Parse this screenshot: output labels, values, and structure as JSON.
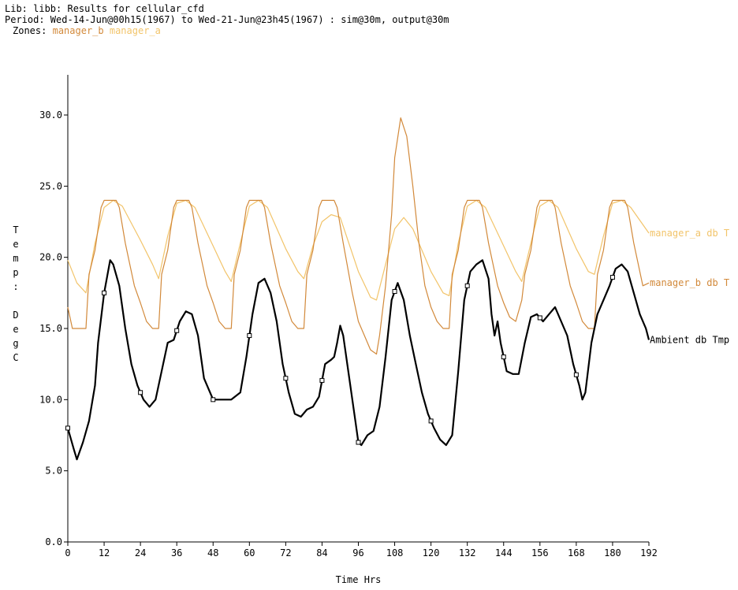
{
  "header": {
    "lib_line": "Lib: libb: Results for cellular_cfd",
    "period_line": "Period: Wed-14-Jun@00h15(1967) to Wed-21-Jun@23h45(1967) : sim@30m, output@30m",
    "zones_label": "Zones:",
    "zones": [
      "manager_b",
      "manager_a"
    ]
  },
  "colors": {
    "manager_b": "#d2893a",
    "manager_a": "#f2c46a",
    "ambient": "#000000"
  },
  "chart_data": {
    "type": "line",
    "xlabel": "Time Hrs",
    "ylabel": "Temp: DegC",
    "xlim": [
      0,
      192
    ],
    "ylim": [
      0,
      32
    ],
    "xticks": [
      "0",
      "12",
      "24",
      "36",
      "48",
      "60",
      "72",
      "84",
      "96",
      "108",
      "120",
      "132",
      "144",
      "156",
      "168",
      "180",
      "192"
    ],
    "yticks": [
      "0.0",
      "5.0",
      "10.0",
      "15.0",
      "20.0",
      "25.0",
      "30.0"
    ],
    "grid": false,
    "series": [
      {
        "name": "manager_a db T",
        "color": "#f2c46a",
        "x": [
          0,
          3,
          6,
          9,
          12,
          15,
          18,
          24,
          28,
          30,
          33,
          36,
          39,
          42,
          48,
          52,
          54,
          57,
          60,
          63,
          66,
          72,
          76,
          78,
          81,
          84,
          87,
          90,
          96,
          100,
          102,
          105,
          108,
          111,
          114,
          120,
          124,
          126,
          129,
          132,
          135,
          138,
          144,
          148,
          150,
          153,
          156,
          159,
          162,
          168,
          172,
          174,
          177,
          180,
          183,
          186,
          192
        ],
        "y": [
          19.8,
          18.2,
          17.5,
          21.0,
          23.5,
          24.0,
          23.6,
          21.2,
          19.5,
          18.5,
          21.5,
          23.8,
          24.0,
          23.5,
          20.8,
          19.0,
          18.3,
          21.0,
          23.6,
          24.0,
          23.5,
          20.6,
          19.0,
          18.5,
          20.8,
          22.5,
          23.0,
          22.8,
          19.0,
          17.2,
          17.0,
          19.5,
          22.0,
          22.8,
          22.0,
          19.0,
          17.5,
          17.3,
          21.0,
          23.6,
          24.0,
          23.5,
          20.8,
          19.0,
          18.3,
          21.0,
          23.6,
          24.0,
          23.5,
          20.6,
          19.0,
          18.8,
          21.5,
          23.8,
          24.0,
          23.5,
          21.7
        ]
      },
      {
        "name": "manager_b db T",
        "color": "#d2893a",
        "x": [
          0,
          1.5,
          3,
          6,
          7,
          9,
          11,
          12,
          16,
          17,
          19,
          22,
          24,
          26,
          28,
          30,
          31,
          33,
          35,
          36,
          40,
          41,
          43,
          46,
          48,
          50,
          52,
          54,
          55,
          57,
          59,
          60,
          64,
          65,
          67,
          70,
          72,
          74,
          76,
          78,
          79,
          81,
          83,
          84,
          88,
          89,
          91,
          94,
          96,
          98,
          100,
          102,
          103,
          105,
          107,
          108,
          110,
          112,
          114,
          116,
          118,
          120,
          122,
          124,
          126,
          127,
          129,
          131,
          132,
          136,
          137,
          139,
          142,
          144,
          146,
          148,
          150,
          151,
          153,
          155,
          156,
          160,
          161,
          163,
          166,
          168,
          170,
          172,
          174,
          175,
          177,
          179,
          180,
          184,
          185,
          187,
          190,
          192
        ],
        "y": [
          16.5,
          15.0,
          15.0,
          15.0,
          18.8,
          20.5,
          23.5,
          24.0,
          24.0,
          23.5,
          21.0,
          18.0,
          16.8,
          15.5,
          15.0,
          15.0,
          18.8,
          20.5,
          23.5,
          24.0,
          24.0,
          23.5,
          21.0,
          18.0,
          16.8,
          15.5,
          15.0,
          15.0,
          18.8,
          20.5,
          23.5,
          24.0,
          24.0,
          23.5,
          21.0,
          18.0,
          16.8,
          15.5,
          15.0,
          15.0,
          18.8,
          20.5,
          23.5,
          24.0,
          24.0,
          23.5,
          21.0,
          17.5,
          15.5,
          14.5,
          13.5,
          13.2,
          14.5,
          18.0,
          23.0,
          27.0,
          29.8,
          28.5,
          25.0,
          21.0,
          18.0,
          16.5,
          15.5,
          15.0,
          15.0,
          18.8,
          20.5,
          23.5,
          24.0,
          24.0,
          23.5,
          21.0,
          18.0,
          16.8,
          15.8,
          15.5,
          17.0,
          18.8,
          20.5,
          23.5,
          24.0,
          24.0,
          23.5,
          21.0,
          18.0,
          16.8,
          15.5,
          15.0,
          15.0,
          18.8,
          20.5,
          23.5,
          24.0,
          24.0,
          23.5,
          21.0,
          18.0,
          18.2
        ]
      },
      {
        "name": "Ambient db Tmp",
        "color": "#000000",
        "x": [
          0,
          2,
          3,
          5,
          7,
          9,
          10,
          12,
          14,
          15,
          17,
          19,
          21,
          23,
          25,
          27,
          29,
          31,
          33,
          35,
          37,
          39,
          41,
          43,
          45,
          48,
          54,
          57,
          59,
          61,
          63,
          65,
          67,
          69,
          71,
          73,
          75,
          77,
          79,
          81,
          83,
          85,
          87,
          88,
          89,
          90,
          91,
          93,
          95,
          96,
          97,
          99,
          101,
          103,
          105,
          107,
          109,
          111,
          113,
          115,
          117,
          119,
          121,
          123,
          125,
          127,
          129,
          131,
          133,
          135,
          137,
          139,
          140,
          141,
          142,
          143,
          144,
          145,
          147,
          149,
          151,
          153,
          155,
          157,
          159,
          161,
          163,
          165,
          167,
          169,
          170,
          171,
          173,
          175,
          177,
          179,
          181,
          183,
          185,
          187,
          189,
          191,
          192
        ],
        "y": [
          8.0,
          6.5,
          5.8,
          7.0,
          8.5,
          11.0,
          14.0,
          17.5,
          19.8,
          19.5,
          18.0,
          15.0,
          12.5,
          11.0,
          10.0,
          9.5,
          10.0,
          12.0,
          14.0,
          14.2,
          15.5,
          16.2,
          16.0,
          14.5,
          11.5,
          10.0,
          10.0,
          10.5,
          13.0,
          16.0,
          18.2,
          18.5,
          17.5,
          15.5,
          12.5,
          10.5,
          9.0,
          8.8,
          9.3,
          9.5,
          10.2,
          12.5,
          12.8,
          13.0,
          14.0,
          15.2,
          14.5,
          11.5,
          8.5,
          7.0,
          6.8,
          7.5,
          7.8,
          9.5,
          13.0,
          17.0,
          18.2,
          17.0,
          14.5,
          12.5,
          10.5,
          9.0,
          8.0,
          7.2,
          6.8,
          7.5,
          12.0,
          17.0,
          19.0,
          19.5,
          19.8,
          18.5,
          16.0,
          14.5,
          15.5,
          14.0,
          13.0,
          12.0,
          11.8,
          11.8,
          14.0,
          15.8,
          16.0,
          15.5,
          16.0,
          16.5,
          15.5,
          14.5,
          12.5,
          11.0,
          10.0,
          10.5,
          14.0,
          16.0,
          17.0,
          18.0,
          19.2,
          19.5,
          19.0,
          17.5,
          16.0,
          15.0,
          14.2
        ]
      }
    ]
  }
}
